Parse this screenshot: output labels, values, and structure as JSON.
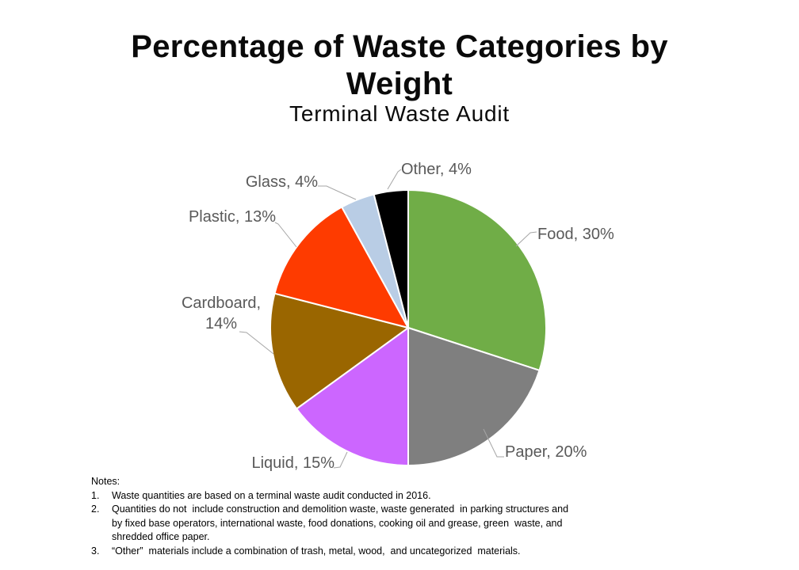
{
  "header": {
    "title_lines": [
      "Percentage of Waste Categories by",
      "Weight"
    ],
    "subtitle": "Terminal Waste Audit"
  },
  "chart_data": {
    "type": "pie",
    "title": "Percentage of Waste Categories by Weight",
    "subtitle": "Terminal Waste Audit",
    "categories": [
      "Food",
      "Paper",
      "Liquid",
      "Cardboard",
      "Plastic",
      "Glass",
      "Other"
    ],
    "values": [
      30,
      20,
      15,
      14,
      13,
      4,
      4
    ],
    "unit": "%",
    "labels": [
      "Food, 30%",
      "Paper, 20%",
      "Liquid, 15%",
      "Cardboard, 14%",
      "Plastic, 13%",
      "Glass, 4%",
      "Other, 4%"
    ],
    "colors": [
      "#70AD47",
      "#7F7F7F",
      "#CC66FF",
      "#9A6600",
      "#FE3B00",
      "#B9CDE5",
      "#000000"
    ],
    "slice_border_color": "#FFFFFF",
    "label_color": "#595959",
    "leader_line_color": "#A6A6A6",
    "start_angle_deg": 0,
    "direction": "clockwise",
    "legend": "none"
  },
  "notes": {
    "heading": "Notes:",
    "items": [
      {
        "number": "1.",
        "lines": [
          "Waste quantities are based on a terminal waste audit conducted in 2016."
        ]
      },
      {
        "number": "2.",
        "lines": [
          "Quantities do not  include construction and demolition waste, waste generated  in parking structures and",
          "by fixed base operators, international waste, food donations, cooking oil and grease, green  waste, and",
          "shredded office paper."
        ]
      },
      {
        "number": "3.",
        "lines": [
          "“Other”  materials include a combination of trash, metal, wood,  and uncategorized  materials."
        ]
      }
    ]
  }
}
